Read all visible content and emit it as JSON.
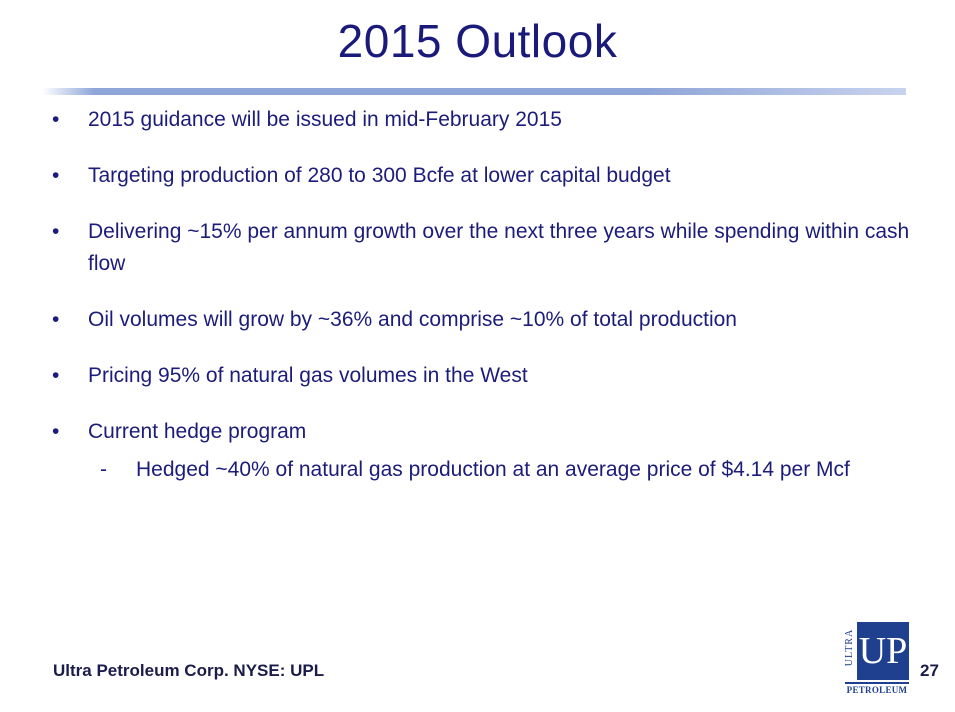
{
  "slide": {
    "title": "2015 Outlook",
    "bullets": [
      "2015 guidance will be issued in mid-February 2015",
      "Targeting production of 280 to 300 Bcfe at lower capital budget",
      "Delivering ~15% per annum growth over the next three years while spending within cash flow",
      "Oil volumes will grow by ~36% and comprise ~10% of total production",
      "Pricing 95% of natural gas volumes in the West",
      "Current hedge program"
    ],
    "bullet_glyph": "•",
    "sub_bullet": "Hedged ~40% of natural gas production at an average price of $4.14 per Mcf",
    "sub_glyph": "-"
  },
  "footer": {
    "company": "Ultra Petroleum Corp. NYSE: UPL",
    "page_number": "27"
  },
  "logo": {
    "mark": "UP",
    "side_text": "ULTRA",
    "bottom_text": "PETROLEUM",
    "color": "#1f3f8f"
  },
  "colors": {
    "title": "#1a1a7a",
    "text": "#1c1c7a",
    "rule": "#8fa6d8"
  }
}
